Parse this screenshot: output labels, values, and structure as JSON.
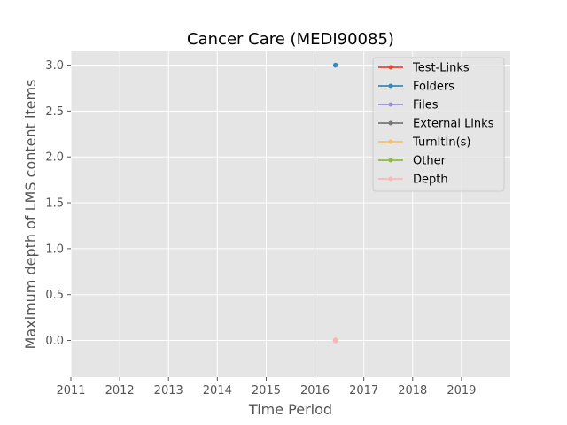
{
  "chart_data": {
    "type": "line",
    "title": "Cancer Care (MEDI90085)",
    "xlabel": "Time Period",
    "ylabel": "Maximum depth of LMS content items",
    "xlim": [
      2011,
      2020
    ],
    "ylim": [
      -0.4,
      3.15
    ],
    "xticks": [
      2011,
      2012,
      2013,
      2014,
      2015,
      2016,
      2017,
      2018,
      2019
    ],
    "yticks": [
      0.0,
      0.5,
      1.0,
      1.5,
      2.0,
      2.5,
      3.0
    ],
    "ytick_labels": [
      "0.0",
      "0.5",
      "1.0",
      "1.5",
      "2.0",
      "2.5",
      "3.0"
    ],
    "grid": true,
    "legend_position": "top-right",
    "series": [
      {
        "name": "Test-Links",
        "color": "#E24A33",
        "points": [
          {
            "x": 2016.42,
            "y": 0
          }
        ]
      },
      {
        "name": "Folders",
        "color": "#348ABD",
        "points": [
          {
            "x": 2016.42,
            "y": 3
          }
        ]
      },
      {
        "name": "Files",
        "color": "#988ED5",
        "points": [
          {
            "x": 2016.42,
            "y": 0
          }
        ]
      },
      {
        "name": "External Links",
        "color": "#777777",
        "points": [
          {
            "x": 2016.42,
            "y": 0
          }
        ]
      },
      {
        "name": "TurnItIn(s)",
        "color": "#FBC15E",
        "points": [
          {
            "x": 2016.42,
            "y": 0
          }
        ]
      },
      {
        "name": "Other",
        "color": "#8EBA42",
        "points": [
          {
            "x": 2016.42,
            "y": 0
          }
        ]
      },
      {
        "name": "Depth",
        "color": "#FFB5B8",
        "points": [
          {
            "x": 2016.42,
            "y": 0
          }
        ]
      }
    ]
  }
}
